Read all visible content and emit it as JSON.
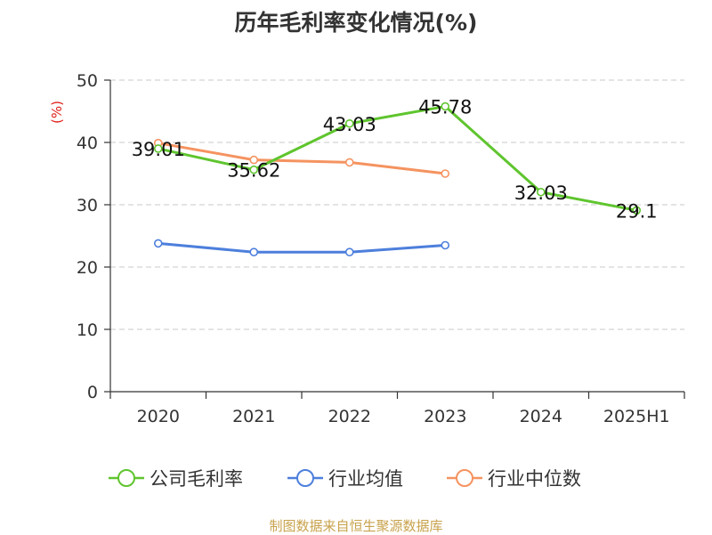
{
  "chart_data": {
    "type": "line",
    "title": "历年毛利率变化情况(%)",
    "ylabel": "(%)",
    "xlabel": "",
    "categories": [
      "2020",
      "2021",
      "2022",
      "2023",
      "2024",
      "2025H1"
    ],
    "ylim": [
      0,
      50
    ],
    "yticks": [
      0,
      10,
      20,
      30,
      40,
      50
    ],
    "grid": "horizontal dashed",
    "legend_position": "bottom",
    "series": [
      {
        "name": "公司毛利率",
        "color": "#5fc52e",
        "values": [
          39.01,
          35.62,
          43.03,
          45.78,
          32.03,
          29.1
        ],
        "labels": [
          "39.01",
          "35.62",
          "43.03",
          "45.78",
          "32.03",
          "29.1"
        ]
      },
      {
        "name": "行业均值",
        "color": "#4d7fdc",
        "values": [
          23.8,
          22.4,
          22.4,
          23.5,
          null,
          null
        ]
      },
      {
        "name": "行业中位数",
        "color": "#f59360",
        "values": [
          39.9,
          37.2,
          36.8,
          35.0,
          null,
          null
        ]
      }
    ]
  },
  "footer": {
    "source": "制图数据来自恒生聚源数据库"
  }
}
